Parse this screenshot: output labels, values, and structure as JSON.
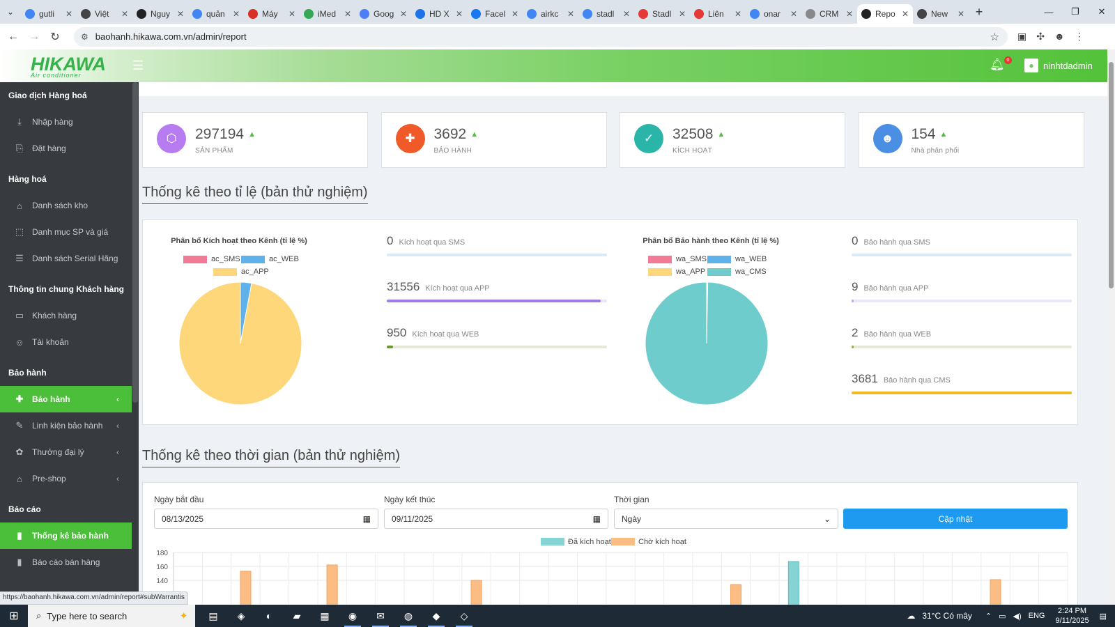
{
  "browser": {
    "tabs": [
      {
        "label": "gutli",
        "icon": "google-icon",
        "color": "#4285f4"
      },
      {
        "label": "Việt",
        "icon": "globe-icon",
        "color": "#444"
      },
      {
        "label": "Nguy",
        "icon": "wikipedia-icon",
        "color": "#222"
      },
      {
        "label": "quản",
        "icon": "google-icon",
        "color": "#4285f4"
      },
      {
        "label": "Máy",
        "icon": "gmail-icon",
        "color": "#d93025"
      },
      {
        "label": "iMed",
        "icon": "leaf-icon",
        "color": "#34a853"
      },
      {
        "label": "Goog",
        "icon": "gemini-icon",
        "color": "#4e7ef7"
      },
      {
        "label": "HD X",
        "icon": "docs-icon",
        "color": "#1a73e8"
      },
      {
        "label": "Facel",
        "icon": "facebook-icon",
        "color": "#1877f2"
      },
      {
        "label": "airkc",
        "icon": "google-icon",
        "color": "#4285f4"
      },
      {
        "label": "stadl",
        "icon": "google-icon",
        "color": "#4285f4"
      },
      {
        "label": "Stadl",
        "icon": "tool-icon",
        "color": "#e53935"
      },
      {
        "label": "Liên",
        "icon": "tool-icon",
        "color": "#e53935"
      },
      {
        "label": "onar",
        "icon": "google-icon",
        "color": "#4285f4"
      },
      {
        "label": "CRM",
        "icon": "crm-icon",
        "color": "#888"
      },
      {
        "label": "Repo",
        "icon": "report-icon",
        "color": "#222",
        "active": true
      },
      {
        "label": "New",
        "icon": "globe-icon",
        "color": "#444"
      }
    ],
    "url": "baohanh.hikawa.com.vn/admin/report",
    "status_url": "https://baohanh.hikawa.com.vn/admin/report#subWarrantis"
  },
  "header": {
    "logo_text": "HIKAWA",
    "logo_sub": "Air conditioner",
    "notif_count": "0",
    "username": "ninhtdadmin"
  },
  "sidebar": {
    "sections": [
      {
        "title": "Giao dịch Hàng hoá",
        "items": [
          {
            "label": "Nhập hàng",
            "icon": "download-icon"
          },
          {
            "label": "Đặt hàng",
            "icon": "order-icon"
          }
        ]
      },
      {
        "title": "Hàng hoá",
        "items": [
          {
            "label": "Danh sách kho",
            "icon": "home-icon"
          },
          {
            "label": "Danh mục SP và giá",
            "icon": "box-icon"
          },
          {
            "label": "Danh sách Serial Hãng",
            "icon": "database-icon"
          }
        ]
      },
      {
        "title": "Thông tin chung Khách hàng",
        "items": [
          {
            "label": "Khách hàng",
            "icon": "id-card-icon"
          },
          {
            "label": "Tài khoản",
            "icon": "user-icon"
          }
        ]
      },
      {
        "title": "Bảo hành",
        "items": [
          {
            "label": "Bảo hành",
            "icon": "medkit-icon",
            "active": true,
            "chevron": true
          },
          {
            "label": "Linh kiện bảo hành",
            "icon": "wrench-icon",
            "chevron": true
          },
          {
            "label": "Thưởng đại lý",
            "icon": "gift-icon",
            "chevron": true
          },
          {
            "label": "Pre-shop",
            "icon": "shop-icon",
            "chevron": true
          }
        ]
      },
      {
        "title": "Báo cáo",
        "items": [
          {
            "label": "Thống kê bảo hành",
            "icon": "bar-chart-icon",
            "active": true
          },
          {
            "label": "Báo cáo bán hàng",
            "icon": "bar-chart-icon"
          }
        ]
      }
    ]
  },
  "stats": [
    {
      "value": "297194",
      "label": "SẢN PHẨM",
      "icon": "cube-icon",
      "color": "#b67cf0"
    },
    {
      "value": "3692",
      "label": "BẢO HÀNH",
      "icon": "medkit-icon",
      "color": "#f05a28"
    },
    {
      "value": "32508",
      "label": "KÍCH HOẠT",
      "icon": "check-icon",
      "color": "#2bb5a9"
    },
    {
      "value": "154",
      "label": "Nhà phân phối",
      "icon": "user-icon",
      "color": "#4a8fe3"
    }
  ],
  "section1_title": "Thống kê theo tỉ lệ (bản thử nghiệm)",
  "section2_title": "Thống kê theo thời gian (bản thử nghiệm)",
  "pie_activation": {
    "title": "Phân bổ Kích hoạt theo Kênh (tỉ lệ %)",
    "legend": [
      {
        "name": "ac_SMS",
        "color": "#f27a97"
      },
      {
        "name": "ac_WEB",
        "color": "#5fb1ea"
      },
      {
        "name": "ac_APP",
        "color": "#fdd77a"
      }
    ],
    "slices": [
      {
        "name": "ac_SMS",
        "value": 0,
        "color": "#f27a97"
      },
      {
        "name": "ac_WEB",
        "value": 950,
        "color": "#5fb1ea"
      },
      {
        "name": "ac_APP",
        "value": 31556,
        "color": "#fdd77a"
      }
    ]
  },
  "pie_warranty": {
    "title": "Phân bổ Bảo hành theo Kênh (tỉ lệ %)",
    "legend": [
      {
        "name": "wa_SMS",
        "color": "#f27a97"
      },
      {
        "name": "wa_WEB",
        "color": "#5fb1ea"
      },
      {
        "name": "wa_APP",
        "color": "#fdd77a"
      },
      {
        "name": "wa_CMS",
        "color": "#6fcccc"
      }
    ],
    "slices": [
      {
        "name": "wa_SMS",
        "value": 0,
        "color": "#f27a97"
      },
      {
        "name": "wa_WEB",
        "value": 2,
        "color": "#5fb1ea"
      },
      {
        "name": "wa_APP",
        "value": 9,
        "color": "#fdd77a"
      },
      {
        "name": "wa_CMS",
        "value": 3681,
        "color": "#6fcccc"
      }
    ]
  },
  "act_bars": [
    {
      "value": "0",
      "label": "Kích hoạt qua SMS",
      "pct": 0,
      "color": "#63aee8",
      "track": "#d9e9f6"
    },
    {
      "value": "31556",
      "label": "Kích hoạt qua APP",
      "pct": 0.97,
      "color": "#a07be6",
      "track": "#ece4f8"
    },
    {
      "value": "950",
      "label": "Kích hoạt qua WEB",
      "pct": 0.03,
      "color": "#6f9a2a",
      "track": "#e6e9d8"
    }
  ],
  "war_bars": [
    {
      "value": "0",
      "label": "Bảo hành qua SMS",
      "pct": 0,
      "color": "#63aee8",
      "track": "#d9e9f6"
    },
    {
      "value": "9",
      "label": "Bảo hành qua APP",
      "pct": 0.003,
      "color": "#c8a8ea",
      "track": "#ece4f8"
    },
    {
      "value": "2",
      "label": "Bảo hành qua WEB",
      "pct": 0.001,
      "color": "#8fae4a",
      "track": "#e6e9d8"
    },
    {
      "value": "3681",
      "label": "Bảo hành qua CMS",
      "pct": 1.0,
      "color": "#f2b824",
      "track": "#f7ecd0"
    }
  ],
  "filters": {
    "start_label": "Ngày bắt đầu",
    "start_value": "08/13/2025",
    "end_label": "Ngày kết thúc",
    "end_value": "09/11/2025",
    "period_label": "Thời gian",
    "period_value": "Ngày",
    "update_button": "Cập nhật"
  },
  "chart_data": {
    "type": "bar",
    "series": [
      {
        "name": "Đã kích hoạt",
        "color": "#86d3d3",
        "values": [
          0,
          0,
          0,
          0,
          0,
          0,
          0,
          0,
          0,
          0,
          0,
          0,
          0,
          0,
          0,
          0,
          0,
          0,
          0,
          0,
          0,
          167,
          0,
          0,
          0,
          0,
          0,
          0,
          0,
          0,
          0
        ]
      },
      {
        "name": "Chờ kích hoạt",
        "color": "#fbbd84",
        "values": [
          0,
          0,
          153,
          0,
          0,
          162,
          0,
          0,
          0,
          0,
          140,
          0,
          0,
          0,
          0,
          0,
          0,
          0,
          0,
          134,
          0,
          0,
          0,
          0,
          0,
          0,
          0,
          0,
          141,
          0,
          0
        ]
      }
    ],
    "y_ticks": [
      180,
      160,
      140
    ],
    "ylim": [
      0,
      180
    ]
  },
  "taskbar": {
    "search_placeholder": "Type here to search",
    "weather": "31°C  Có mây",
    "lang": "ENG",
    "time": "2:24 PM",
    "date": "9/11/2025",
    "notif": "4",
    "apps": [
      "task-view-icon",
      "copilot-icon",
      "edge-icon",
      "file-explorer-icon",
      "store-icon",
      "chrome-icon",
      "outlook-icon",
      "chat-icon",
      "app-icon",
      "app2-icon"
    ]
  }
}
